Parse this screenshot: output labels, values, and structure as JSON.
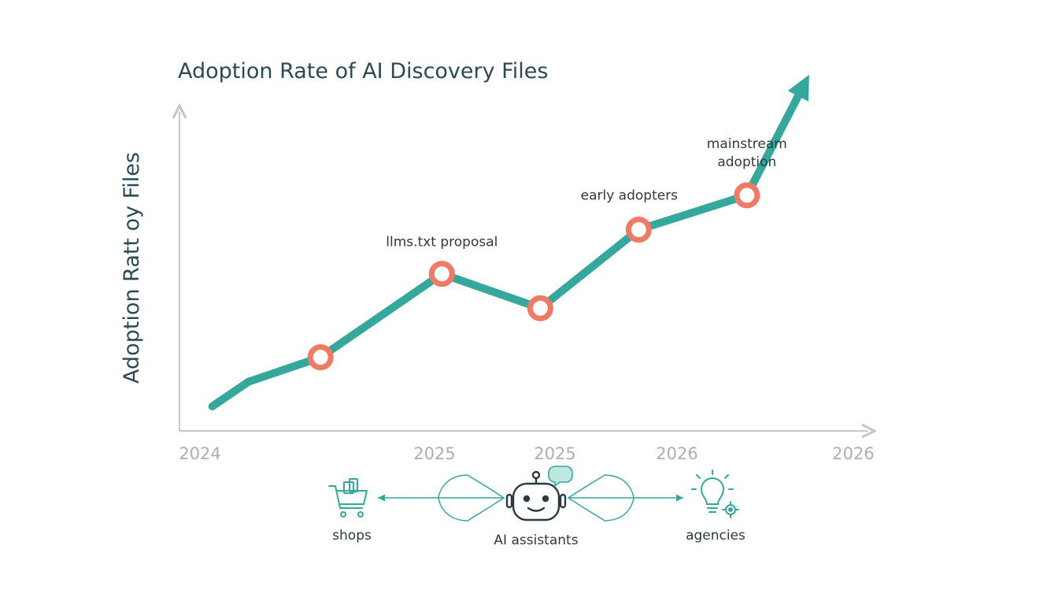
{
  "chart_data": {
    "type": "line",
    "title": "Adoption Rate of AI Discovery Files",
    "xlabel": "",
    "ylabel": "Adoption Ratt oy Files",
    "x_tick_labels": [
      "2024",
      "2025",
      "2025",
      "2026",
      "2026"
    ],
    "x": [
      0,
      0.11,
      0.33,
      0.7,
      1.0,
      1.3,
      1.63,
      1.8
    ],
    "values": [
      5,
      10,
      15,
      32,
      25,
      41,
      48,
      70
    ],
    "marker_indices": [
      2,
      3,
      4,
      5,
      6
    ],
    "xlim": [
      -0.1,
      2.0
    ],
    "ylim": [
      0,
      65
    ],
    "grid": false,
    "legend": "none",
    "colors": {
      "line": "#34a89c",
      "marker": "#f07a63",
      "axis": "#c4c8ca",
      "title": "#2b4a55",
      "tick": "#a9b0b3",
      "icon": "#34a89c",
      "robot": "#2b3a40"
    },
    "annotations": [
      {
        "point_index": 3,
        "lines": [
          "llms.txt proposal"
        ]
      },
      {
        "point_index": 5,
        "lines": [
          "early adopters"
        ]
      },
      {
        "point_index": 6,
        "lines": [
          "mainstream",
          "adoption"
        ]
      }
    ]
  },
  "bottom_diagram": {
    "left": {
      "label": "shops",
      "icon": "shopping-cart-icon"
    },
    "center": {
      "label": "AI assistants",
      "icon": "robot-icon"
    },
    "right": {
      "label": "agencies",
      "icon": "lightbulb-gear-icon"
    }
  }
}
